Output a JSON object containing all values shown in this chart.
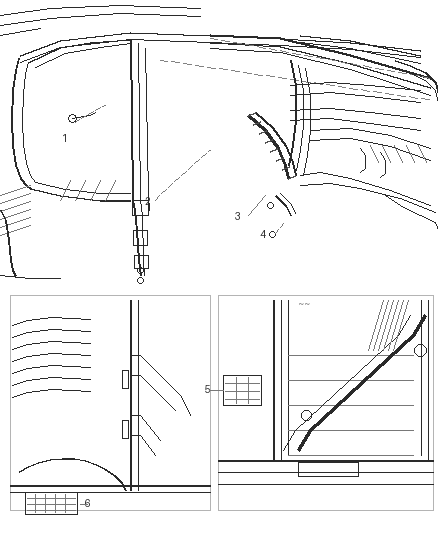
{
  "bg_color": "#ffffff",
  "line_color": "#2a2a2a",
  "label_color": "#000000",
  "fig_width": 4.38,
  "fig_height": 5.33,
  "dpi": 100
}
